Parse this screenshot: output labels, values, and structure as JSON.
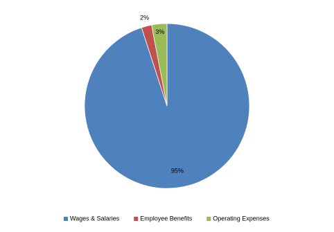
{
  "chart_data": {
    "type": "pie",
    "categories": [
      "Wages & Salaries",
      "Employee Benefits",
      "Operating Expenses"
    ],
    "values": [
      95,
      2,
      3
    ],
    "value_labels": [
      "95%",
      "2%",
      "3%"
    ],
    "colors": [
      "#4f81bd",
      "#c0504d",
      "#9bbb59"
    ],
    "legend": "bottom"
  }
}
